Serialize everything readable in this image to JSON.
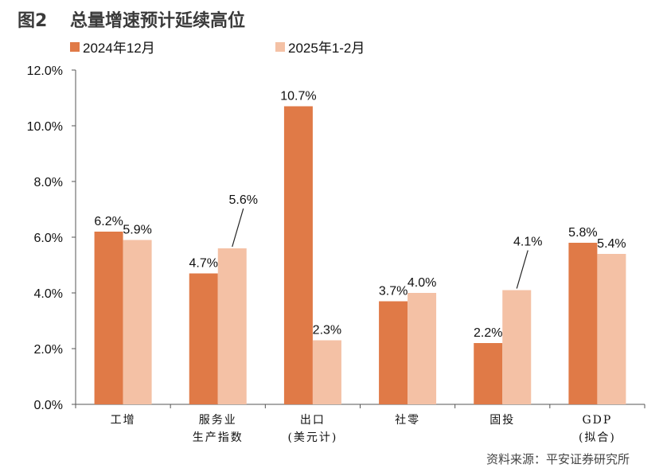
{
  "figure": {
    "number": "图2",
    "title": "总量增速预计延续高位"
  },
  "source": "资料来源：平安证券研究所",
  "colors": {
    "series_1": "#e07a47",
    "series_2": "#f4c1a5",
    "axis": "#555555"
  },
  "chart_data": {
    "type": "bar",
    "title": "总量增速预计延续高位",
    "categories": [
      [
        "工增"
      ],
      [
        "服务业",
        "生产指数"
      ],
      [
        "出口",
        "(美元计)"
      ],
      [
        "社零"
      ],
      [
        "固投"
      ],
      [
        "GDP",
        "(拟合)"
      ]
    ],
    "series": [
      {
        "name": "2024年12月",
        "values": [
          6.2,
          4.7,
          10.7,
          3.7,
          2.2,
          5.8
        ],
        "labels": [
          "6.2%",
          "4.7%",
          "10.7%",
          "3.7%",
          "2.2%",
          "5.8%"
        ]
      },
      {
        "name": "2025年1-2月",
        "values": [
          5.9,
          5.6,
          2.3,
          4.0,
          4.1,
          5.4
        ],
        "labels": [
          "5.9%",
          "5.6%",
          "2.3%",
          "4.0%",
          "4.1%",
          "5.4%"
        ]
      }
    ],
    "y_ticks": [
      "0.0%",
      "2.0%",
      "4.0%",
      "6.0%",
      "8.0%",
      "10.0%",
      "12.0%"
    ],
    "y_tick_values": [
      0,
      2,
      4,
      6,
      8,
      10,
      12
    ],
    "ylim": [
      0,
      12
    ],
    "xlabel": "",
    "ylabel": "",
    "grid": false,
    "legend_position": "top-left",
    "label_leaders": [
      {
        "series": 1,
        "category": 1
      },
      {
        "series": 1,
        "category": 4
      }
    ]
  }
}
